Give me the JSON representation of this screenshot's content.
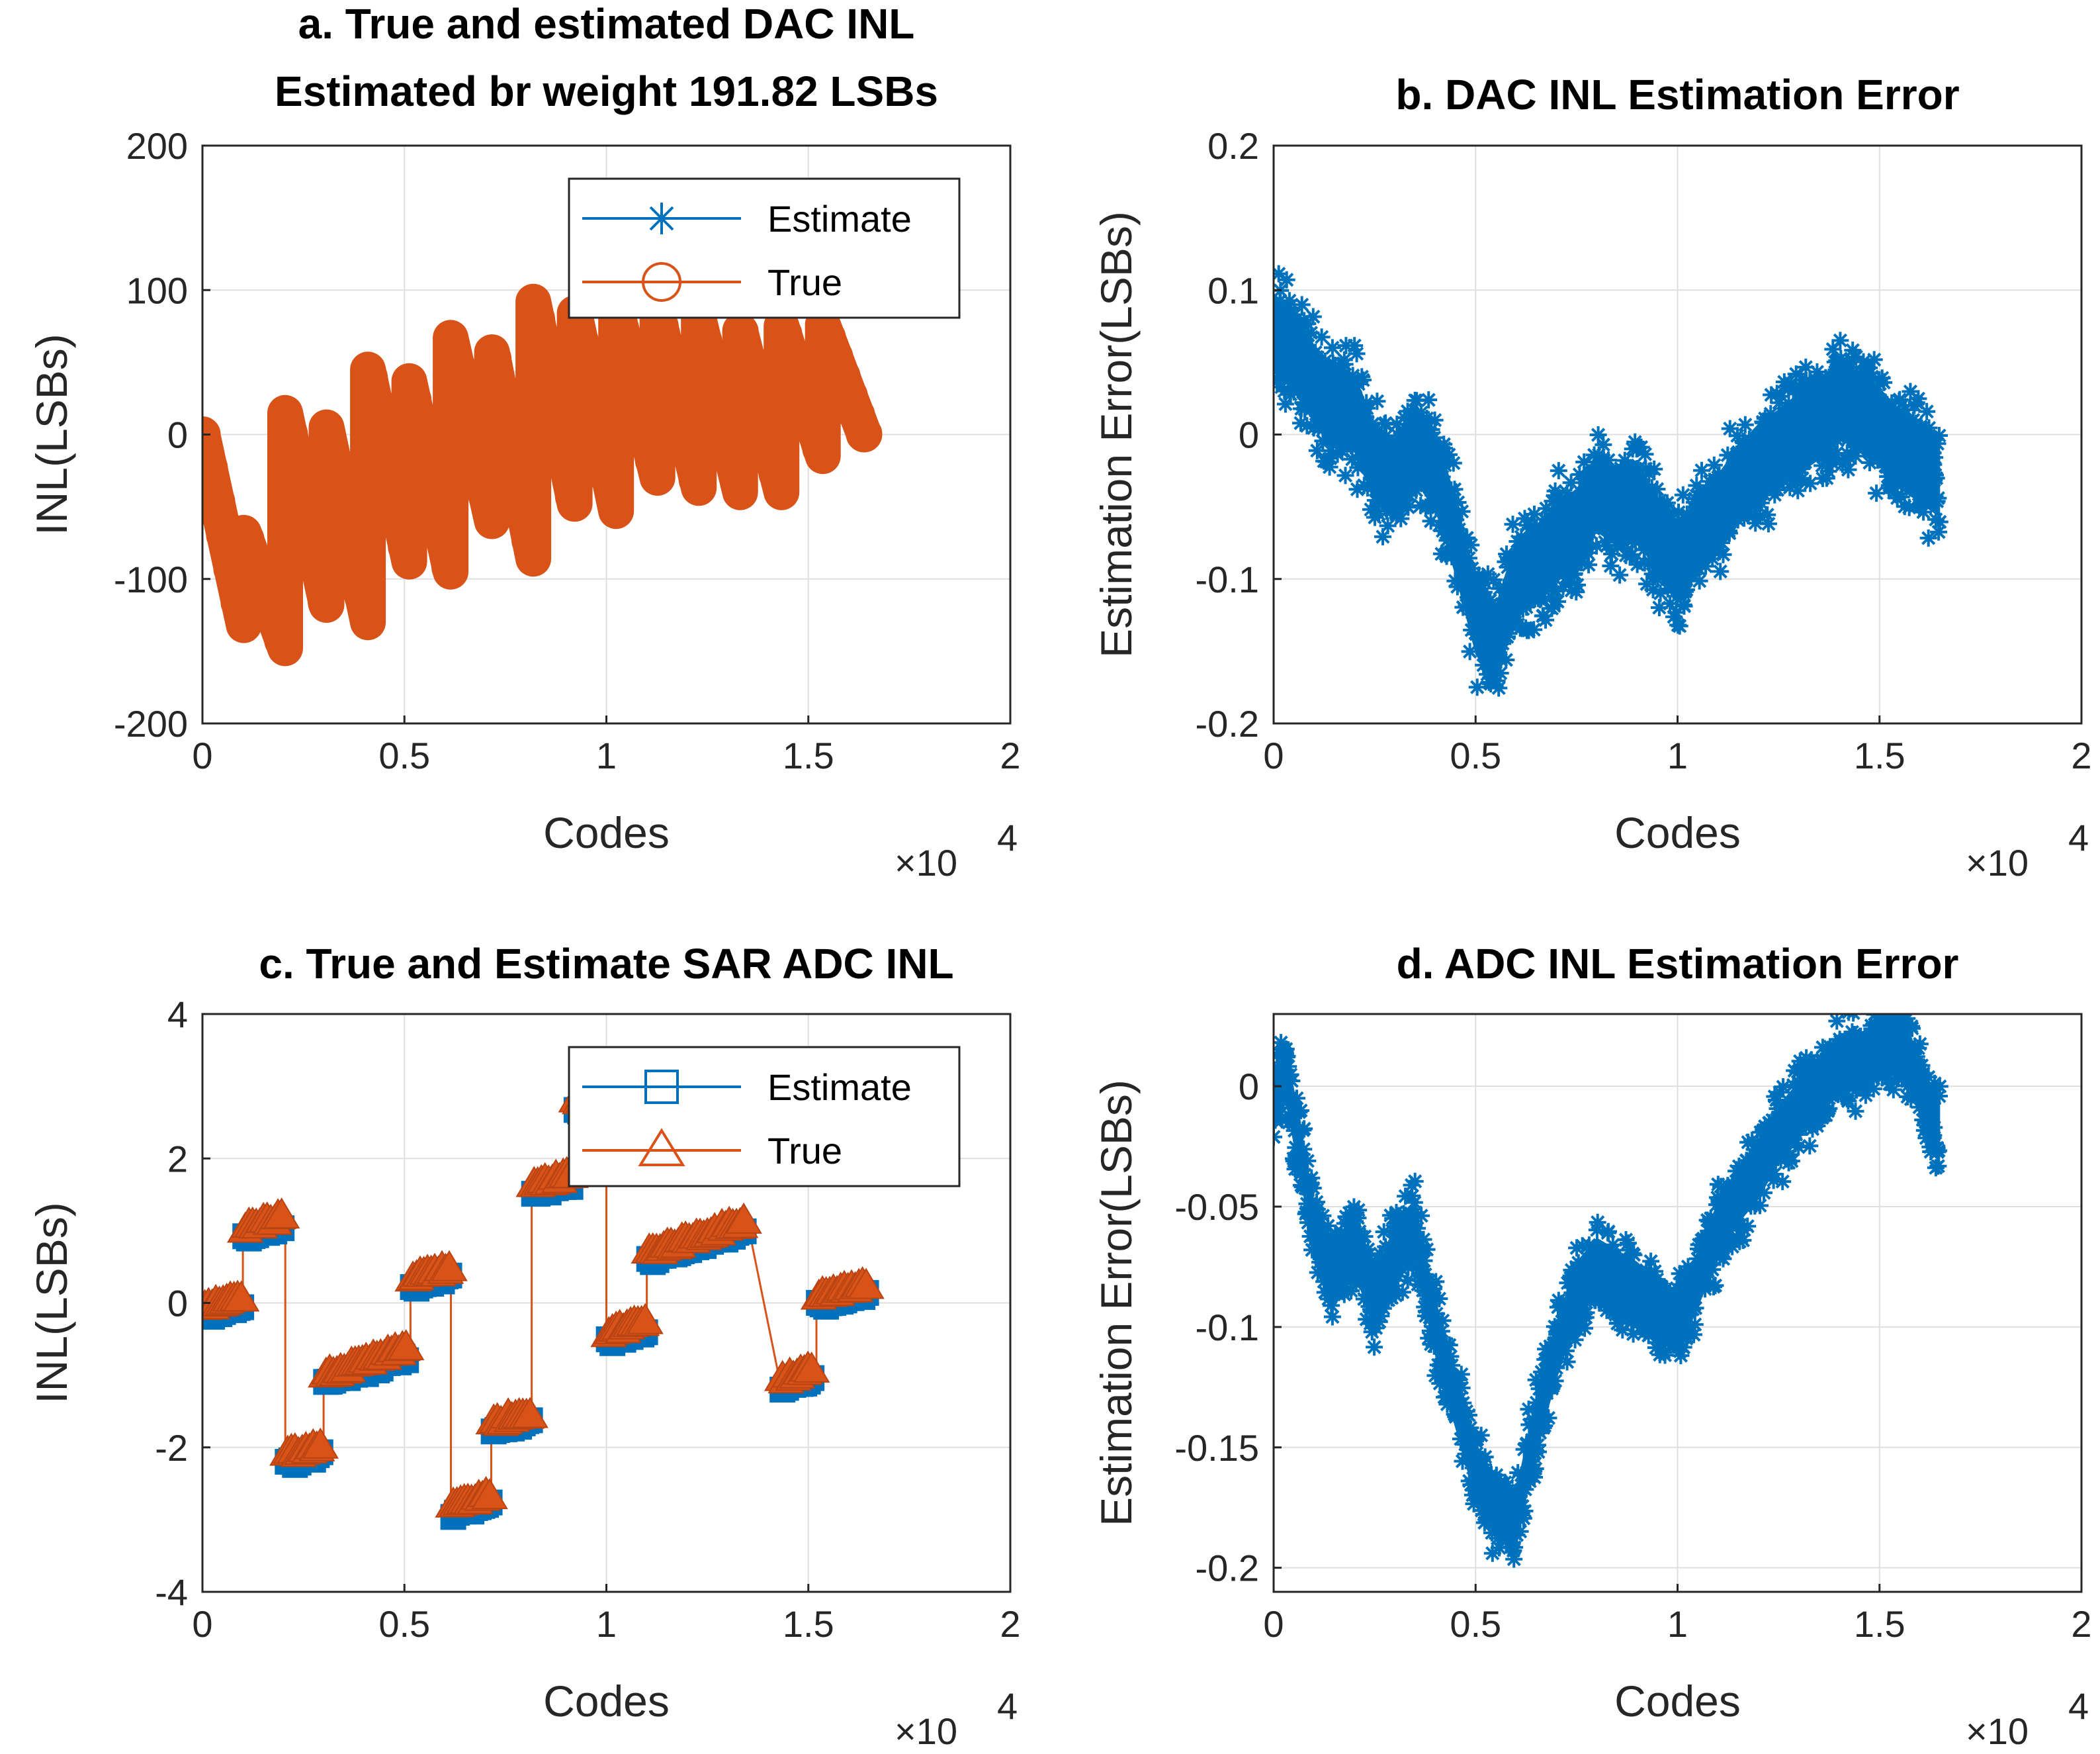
{
  "colors": {
    "estimate": "#0072BD",
    "true": "#D95319",
    "axis": "#262626",
    "grid": "#DFDFDF"
  },
  "chart_data": [
    {
      "id": "a",
      "type": "line",
      "title_lines": [
        "a. True and estimated DAC INL",
        "Estimated br weight 191.82 LSBs"
      ],
      "xlabel": "Codes",
      "ylabel": "INL(LSBs)",
      "x_exponent_label": "×10",
      "x_exponent_power": "4",
      "xlim": [
        0,
        20000
      ],
      "ylim": [
        -200,
        200
      ],
      "xticks": [
        0,
        5000,
        10000,
        15000,
        20000
      ],
      "xtick_labels": [
        "0",
        "0.5",
        "1",
        "1.5",
        "2"
      ],
      "yticks": [
        -200,
        -100,
        0,
        100,
        200
      ],
      "ytick_labels": [
        "-200",
        "-100",
        "0",
        "100",
        "200"
      ],
      "legend": {
        "position": "upper-middle",
        "entries": [
          {
            "name": "Estimate",
            "marker": "star"
          },
          {
            "name": "True",
            "marker": "circle"
          }
        ]
      },
      "series": [
        {
          "name": "True",
          "marker": "circle",
          "style": "sawtooth",
          "x_range": [
            0,
            16500
          ],
          "segment_points": [
            [
              0,
              0
            ],
            [
              1024,
              -132
            ],
            [
              1024,
              -68
            ],
            [
              2048,
              -148
            ],
            [
              2048,
              15
            ],
            [
              3072,
              -118
            ],
            [
              3072,
              5
            ],
            [
              4096,
              -130
            ],
            [
              4096,
              45
            ],
            [
              5120,
              -88
            ],
            [
              5120,
              37
            ],
            [
              6144,
              -95
            ],
            [
              6144,
              67
            ],
            [
              7168,
              -60
            ],
            [
              7168,
              57
            ],
            [
              8192,
              -86
            ],
            [
              8192,
              92
            ],
            [
              9216,
              -48
            ],
            [
              9216,
              84
            ],
            [
              10240,
              -53
            ],
            [
              10240,
              88
            ],
            [
              11264,
              -30
            ],
            [
              11264,
              84
            ],
            [
              12288,
              -37
            ],
            [
              12288,
              80
            ],
            [
              13312,
              -40
            ],
            [
              13312,
              72
            ],
            [
              14336,
              -40
            ],
            [
              14336,
              75
            ],
            [
              15360,
              -15
            ],
            [
              15360,
              76
            ],
            [
              16384,
              0
            ]
          ]
        },
        {
          "name": "Estimate",
          "marker": "star",
          "style": "same-as-true",
          "x_range": [
            0,
            16500
          ]
        }
      ]
    },
    {
      "id": "b",
      "type": "scatter",
      "title_lines": [
        "b.  DAC INL Estimation Error"
      ],
      "xlabel": "Codes",
      "ylabel": "Estimation Error(LSBs)",
      "x_exponent_label": "×10",
      "x_exponent_power": "4",
      "xlim": [
        0,
        20000
      ],
      "ylim": [
        -0.2,
        0.2
      ],
      "xticks": [
        0,
        5000,
        10000,
        15000,
        20000
      ],
      "xtick_labels": [
        "0",
        "0.5",
        "1",
        "1.5",
        "2"
      ],
      "yticks": [
        -0.2,
        -0.1,
        0,
        0.1,
        0.2
      ],
      "ytick_labels": [
        "-0.2",
        "-0.1",
        "0",
        "0.1",
        "0.2"
      ],
      "series": [
        {
          "name": "Estimation Error",
          "marker": "star",
          "band_halfwidth": 0.05,
          "center_points": [
            [
              0,
              0.07
            ],
            [
              500,
              0.06
            ],
            [
              1000,
              0.035
            ],
            [
              1500,
              0.02
            ],
            [
              2000,
              0.015
            ],
            [
              2500,
              -0.02
            ],
            [
              3000,
              -0.03
            ],
            [
              3500,
              -0.005
            ],
            [
              4000,
              -0.025
            ],
            [
              4500,
              -0.07
            ],
            [
              5000,
              -0.125
            ],
            [
              5500,
              -0.145
            ],
            [
              6000,
              -0.1
            ],
            [
              6500,
              -0.09
            ],
            [
              7000,
              -0.075
            ],
            [
              7500,
              -0.065
            ],
            [
              8000,
              -0.04
            ],
            [
              8500,
              -0.05
            ],
            [
              9000,
              -0.045
            ],
            [
              9500,
              -0.07
            ],
            [
              10000,
              -0.09
            ],
            [
              10500,
              -0.07
            ],
            [
              11000,
              -0.055
            ],
            [
              11500,
              -0.035
            ],
            [
              12000,
              -0.02
            ],
            [
              12500,
              -0.01
            ],
            [
              13000,
              0.0
            ],
            [
              13500,
              0.01
            ],
            [
              14000,
              0.025
            ],
            [
              14500,
              0.015
            ],
            [
              15000,
              0.005
            ],
            [
              15500,
              -0.01
            ],
            [
              16000,
              -0.02
            ],
            [
              16500,
              -0.03
            ]
          ]
        }
      ]
    },
    {
      "id": "c",
      "type": "line",
      "title_lines": [
        "c. True and Estimate SAR ADC INL"
      ],
      "xlabel": "Codes",
      "ylabel": "INL(LSBs)",
      "x_exponent_label": "×10",
      "x_exponent_power": "4",
      "xlim": [
        0,
        20000
      ],
      "ylim": [
        -4,
        4
      ],
      "xticks": [
        0,
        5000,
        10000,
        15000,
        20000
      ],
      "xtick_labels": [
        "0",
        "0.5",
        "1",
        "1.5",
        "2"
      ],
      "yticks": [
        -4,
        -2,
        0,
        2,
        4
      ],
      "ytick_labels": [
        "-4",
        "-2",
        "0",
        "2",
        "4"
      ],
      "legend": {
        "position": "upper-middle",
        "entries": [
          {
            "name": "Estimate",
            "marker": "square"
          },
          {
            "name": "True",
            "marker": "triangle"
          }
        ]
      },
      "series": [
        {
          "name": "True",
          "marker": "triangle",
          "clusters": [
            [
              0,
              1000,
              -0.1,
              0.05
            ],
            [
              1000,
              2050,
              1.0,
              1.15
            ],
            [
              2050,
              3000,
              -2.15,
              -2.0
            ],
            [
              3000,
              5150,
              -1.05,
              -0.65
            ],
            [
              5150,
              6150,
              0.3,
              0.45
            ],
            [
              6150,
              7150,
              -2.85,
              -2.7
            ],
            [
              7150,
              8150,
              -1.7,
              -1.55
            ],
            [
              8150,
              9200,
              1.6,
              1.75
            ],
            [
              9200,
              10000,
              2.75,
              2.85
            ],
            [
              10000,
              11000,
              -0.45,
              -0.3
            ],
            [
              11000,
              13500,
              0.65,
              1.1
            ],
            [
              14300,
              15200,
              -1.1,
              -0.95
            ],
            [
              15200,
              16500,
              0.05,
              0.2
            ]
          ]
        },
        {
          "name": "Estimate",
          "marker": "square",
          "style": "same-as-true-offset-down"
        }
      ]
    },
    {
      "id": "d",
      "type": "scatter",
      "title_lines": [
        "d. ADC INL Estimation Error"
      ],
      "xlabel": "Codes",
      "ylabel": "Estimation Error(LSBs)",
      "x_exponent_label": "×10",
      "x_exponent_power": "4",
      "xlim": [
        0,
        20000
      ],
      "ylim": [
        -0.21,
        0.03
      ],
      "xticks": [
        0,
        5000,
        10000,
        15000,
        20000
      ],
      "xtick_labels": [
        "0",
        "0.5",
        "1",
        "1.5",
        "2"
      ],
      "yticks": [
        -0.2,
        -0.15,
        -0.1,
        -0.05,
        0
      ],
      "ytick_labels": [
        "-0.2",
        "-0.15",
        "-0.1",
        "-0.05",
        "0"
      ],
      "series": [
        {
          "name": "Estimation Error",
          "marker": "star",
          "band_halfwidth": 0.022,
          "center_points": [
            [
              0,
              -0.005
            ],
            [
              300,
              0.005
            ],
            [
              700,
              -0.03
            ],
            [
              1000,
              -0.06
            ],
            [
              1500,
              -0.08
            ],
            [
              2000,
              -0.065
            ],
            [
              2500,
              -0.09
            ],
            [
              3000,
              -0.07
            ],
            [
              3500,
              -0.06
            ],
            [
              4000,
              -0.1
            ],
            [
              4500,
              -0.13
            ],
            [
              5000,
              -0.16
            ],
            [
              5500,
              -0.175
            ],
            [
              6000,
              -0.18
            ],
            [
              6500,
              -0.14
            ],
            [
              7000,
              -0.11
            ],
            [
              7500,
              -0.085
            ],
            [
              8000,
              -0.075
            ],
            [
              9000,
              -0.085
            ],
            [
              10000,
              -0.1
            ],
            [
              10500,
              -0.08
            ],
            [
              11000,
              -0.06
            ],
            [
              11500,
              -0.045
            ],
            [
              12000,
              -0.035
            ],
            [
              12500,
              -0.02
            ],
            [
              13000,
              -0.01
            ],
            [
              13500,
              0.0
            ],
            [
              14000,
              0.01
            ],
            [
              14500,
              0.01
            ],
            [
              15000,
              0.015
            ],
            [
              15500,
              0.02
            ],
            [
              16000,
              0.0
            ],
            [
              16500,
              -0.02
            ]
          ]
        }
      ]
    }
  ]
}
